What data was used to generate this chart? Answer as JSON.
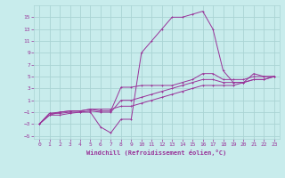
{
  "background_color": "#c8ecec",
  "grid_color": "#aad4d4",
  "line_color": "#993399",
  "xlabel": "Windchill (Refroidissement éolien,°C)",
  "xlim": [
    -0.5,
    23.5
  ],
  "ylim": [
    -5.5,
    17
  ],
  "yticks": [
    -5,
    -3,
    -1,
    1,
    3,
    5,
    7,
    9,
    11,
    13,
    15
  ],
  "xticks": [
    0,
    1,
    2,
    3,
    4,
    5,
    6,
    7,
    8,
    9,
    10,
    11,
    12,
    13,
    14,
    15,
    16,
    17,
    18,
    19,
    20,
    21,
    22,
    23
  ],
  "curve1_x": [
    0,
    1,
    2,
    3,
    4,
    5,
    6,
    7,
    8,
    9,
    10,
    11,
    12,
    13,
    14,
    15,
    16,
    17,
    18,
    19,
    20,
    21,
    22,
    23
  ],
  "curve1_y": [
    -3,
    -1.2,
    -1.2,
    -1,
    -1,
    -1,
    -3.5,
    -4.5,
    -2.2,
    -2.2,
    9,
    11,
    13,
    15,
    15,
    15.5,
    16,
    13,
    6,
    4,
    4,
    5.5,
    5,
    5
  ],
  "curve2_x": [
    0,
    1,
    2,
    3,
    4,
    5,
    6,
    7,
    8,
    9,
    10,
    11,
    12,
    13,
    14,
    15,
    16,
    17,
    18,
    19,
    20,
    21,
    22,
    23
  ],
  "curve2_y": [
    -3,
    -1.2,
    -1,
    -0.8,
    -0.8,
    -0.5,
    -0.8,
    -0.8,
    3.2,
    3.2,
    3.5,
    3.5,
    3.5,
    3.5,
    4,
    4.5,
    5.5,
    5.5,
    4.5,
    4.5,
    4.5,
    5,
    5,
    5
  ],
  "curve3_x": [
    0,
    1,
    2,
    3,
    4,
    5,
    6,
    7,
    8,
    9,
    10,
    11,
    12,
    13,
    14,
    15,
    16,
    17,
    18,
    19,
    20,
    21,
    22,
    23
  ],
  "curve3_y": [
    -3,
    -1.5,
    -1.5,
    -1.2,
    -1,
    -0.8,
    -1,
    -1,
    1.0,
    1.0,
    1.5,
    2,
    2.5,
    3,
    3.5,
    4,
    4.5,
    4.5,
    4,
    4,
    4,
    4.5,
    4.5,
    5
  ],
  "curve4_x": [
    0,
    1,
    2,
    3,
    4,
    5,
    6,
    7,
    8,
    9,
    10,
    11,
    12,
    13,
    14,
    15,
    16,
    17,
    18,
    19,
    20,
    21,
    22,
    23
  ],
  "curve4_y": [
    -3,
    -1.5,
    -1,
    -0.8,
    -0.8,
    -0.5,
    -0.5,
    -0.5,
    0.0,
    0.0,
    0.5,
    1.0,
    1.5,
    2.0,
    2.5,
    3.0,
    3.5,
    3.5,
    3.5,
    3.5,
    4,
    4.5,
    4.5,
    5
  ]
}
